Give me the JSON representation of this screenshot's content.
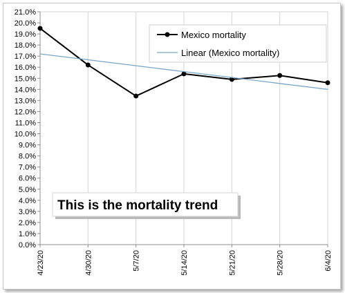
{
  "chart_data": {
    "type": "line",
    "x": [
      "4/23/20",
      "4/30/20",
      "5/7/20",
      "5/14/20",
      "5/21/20",
      "5/28/20",
      "6/4/20"
    ],
    "series": [
      {
        "name": "Mexico mortality",
        "values": [
          19.5,
          16.2,
          13.4,
          15.4,
          14.9,
          15.25,
          14.6
        ],
        "color": "#000000",
        "marker": "circle"
      },
      {
        "name": "Linear (Mexico mortality)",
        "values": [
          17.2,
          16.67,
          16.13,
          15.6,
          15.07,
          14.53,
          14.0
        ],
        "color": "#7aa6c8",
        "marker": "none"
      }
    ],
    "ylim": [
      0,
      21
    ],
    "ytick_step": 1,
    "ytick_format": "percent-1dp",
    "y_ticks": [
      "0.0%",
      "1.0%",
      "2.0%",
      "3.0%",
      "4.0%",
      "5.0%",
      "6.0%",
      "7.0%",
      "8.0%",
      "9.0%",
      "10.0%",
      "11.0%",
      "12.0%",
      "13.0%",
      "14.0%",
      "15.0%",
      "16.0%",
      "17.0%",
      "18.0%",
      "19.0%",
      "20.0%",
      "21.0%"
    ],
    "grid": "vertical",
    "legend_position": "top-right",
    "annotation": "This is the mortality trend"
  }
}
